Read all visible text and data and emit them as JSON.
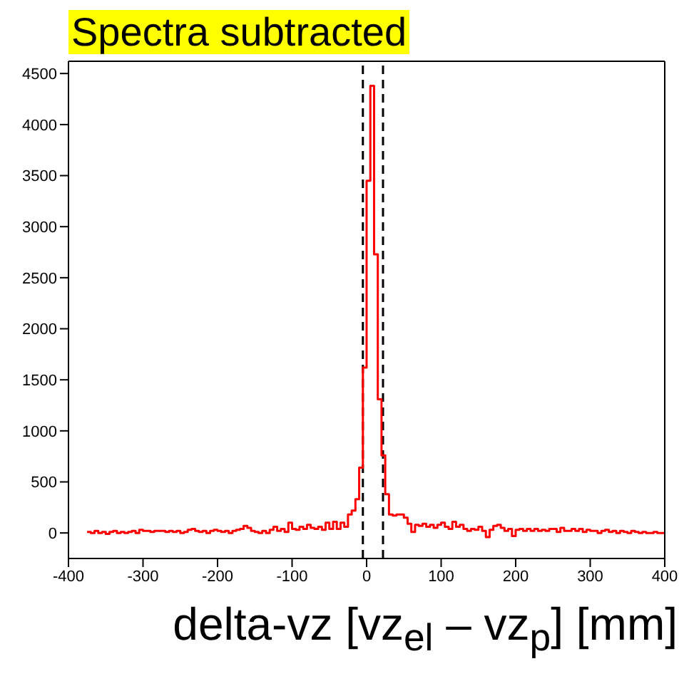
{
  "chart_data": {
    "type": "histogram",
    "title": "Spectra subtracted",
    "xlabel": "delta-vz [vz$_{el}$ – vz$_{p}$] [mm]",
    "bins": [
      -375,
      -370,
      -365,
      -360,
      -355,
      -350,
      -345,
      -340,
      -335,
      -330,
      -325,
      -320,
      -315,
      -310,
      -305,
      -300,
      -295,
      -290,
      -285,
      -280,
      -275,
      -270,
      -265,
      -260,
      -255,
      -250,
      -245,
      -240,
      -235,
      -230,
      -225,
      -220,
      -215,
      -210,
      -205,
      -200,
      -195,
      -190,
      -185,
      -180,
      -175,
      -170,
      -165,
      -160,
      -155,
      -150,
      -145,
      -140,
      -135,
      -130,
      -125,
      -120,
      -115,
      -110,
      -105,
      -100,
      -95,
      -90,
      -85,
      -80,
      -75,
      -70,
      -65,
      -60,
      -55,
      -50,
      -45,
      -40,
      -35,
      -30,
      -25,
      -20,
      -15,
      -10,
      -5,
      0,
      5,
      10,
      15,
      20,
      25,
      30,
      35,
      40,
      45,
      50,
      55,
      60,
      65,
      70,
      75,
      80,
      85,
      90,
      95,
      100,
      105,
      110,
      115,
      120,
      125,
      130,
      135,
      140,
      145,
      150,
      155,
      160,
      165,
      170,
      175,
      180,
      185,
      190,
      195,
      200,
      205,
      210,
      215,
      220,
      225,
      230,
      235,
      240,
      245,
      250,
      255,
      260,
      265,
      270,
      275,
      280,
      285,
      290,
      295,
      300,
      305,
      310,
      315,
      320,
      325,
      330,
      335,
      340,
      345,
      350,
      355,
      360,
      365,
      370,
      375,
      380,
      385,
      390,
      395,
      400
    ],
    "values": [
      10,
      0,
      20,
      0,
      10,
      -10,
      10,
      20,
      0,
      10,
      0,
      10,
      20,
      0,
      30,
      20,
      20,
      10,
      20,
      20,
      20,
      10,
      20,
      10,
      20,
      0,
      10,
      30,
      40,
      20,
      10,
      20,
      0,
      20,
      30,
      20,
      10,
      20,
      0,
      20,
      30,
      40,
      70,
      50,
      20,
      10,
      0,
      20,
      0,
      30,
      60,
      20,
      40,
      10,
      100,
      40,
      30,
      60,
      40,
      80,
      50,
      40,
      60,
      30,
      100,
      40,
      110,
      40,
      100,
      60,
      180,
      220,
      330,
      640,
      1620,
      3450,
      4380,
      2730,
      1310,
      760,
      380,
      180,
      170,
      180,
      180,
      150,
      90,
      10,
      80,
      70,
      90,
      60,
      80,
      50,
      80,
      100,
      60,
      40,
      110,
      60,
      80,
      40,
      20,
      40,
      30,
      60,
      20,
      -40,
      30,
      70,
      80,
      50,
      20,
      40,
      -30,
      30,
      40,
      20,
      40,
      20,
      40,
      20,
      30,
      20,
      40,
      40,
      10,
      50,
      20,
      20,
      40,
      20,
      40,
      10,
      30,
      20,
      20,
      0,
      20,
      30,
      10,
      20,
      0,
      20,
      10,
      0,
      20,
      10,
      0,
      10,
      0,
      0,
      10,
      0,
      0
    ],
    "color": "#ff0000",
    "xlim": [
      -400,
      400
    ],
    "xticks": [
      -400,
      -300,
      -200,
      -100,
      0,
      100,
      200,
      300,
      400
    ],
    "ylim": [
      -250,
      4620
    ],
    "yticks": [
      0,
      500,
      1000,
      1500,
      2000,
      2500,
      3000,
      3500,
      4000,
      4500
    ],
    "ref_lines": [
      {
        "axis": "x",
        "value": -5,
        "color": "#000000",
        "line_style": "dashed"
      },
      {
        "axis": "x",
        "value": 22,
        "color": "#000000",
        "line_style": "dashed"
      }
    ],
    "grid": false
  }
}
